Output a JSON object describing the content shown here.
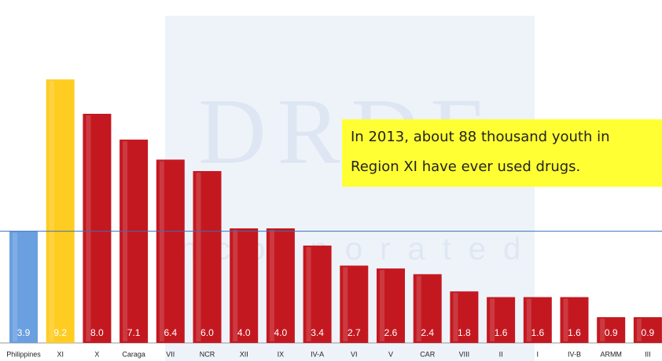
{
  "chart_data": {
    "type": "bar",
    "categories": [
      "Philippines",
      "XI",
      "X",
      "Caraga",
      "VII",
      "NCR",
      "XII",
      "IX",
      "IV-A",
      "VI",
      "V",
      "CAR",
      "VIII",
      "II",
      "I",
      "IV-B",
      "ARMM",
      "III"
    ],
    "values": [
      3.9,
      9.2,
      8.0,
      7.1,
      6.4,
      6.0,
      4.0,
      4.0,
      3.4,
      2.7,
      2.6,
      2.4,
      1.8,
      1.6,
      1.6,
      1.6,
      0.9,
      0.9
    ],
    "value_labels": [
      "3.9",
      "9.2",
      "8.0",
      "7.1",
      "6.4",
      "6.0",
      "4.0",
      "4.0",
      "3.4",
      "2.7",
      "2.6",
      "2.4",
      "1.8",
      "1.6",
      "1.6",
      "1.6",
      "0.9",
      "0.9"
    ],
    "colors": [
      "#6a9fe0",
      "#ffcc22",
      "#c41820",
      "#c41820",
      "#c41820",
      "#c41820",
      "#c41820",
      "#c41820",
      "#c41820",
      "#c41820",
      "#c41820",
      "#c41820",
      "#c41820",
      "#c41820",
      "#c41820",
      "#c41820",
      "#c41820",
      "#c41820"
    ],
    "annotation": [
      "In 2013, about 88 thousand youth in",
      "Region XI have ever used drugs."
    ],
    "watermark": [
      "DRDF",
      "Incorporated"
    ]
  }
}
